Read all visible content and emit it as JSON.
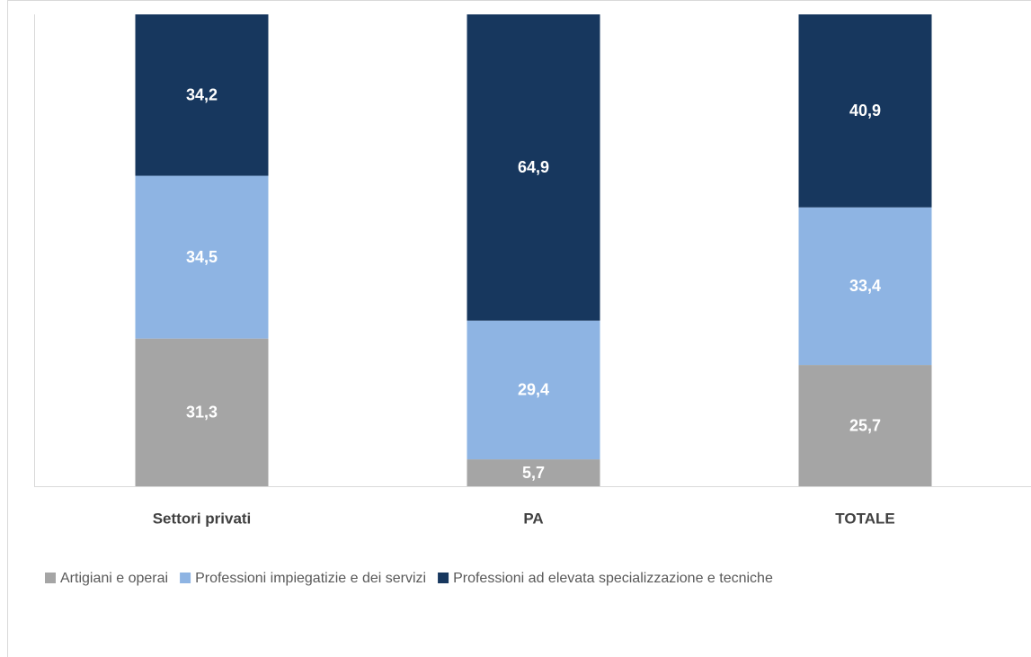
{
  "chart_data": {
    "type": "stacked-bar",
    "categories": [
      "Settori privati",
      "PA",
      "TOTALE"
    ],
    "series": [
      {
        "name": "Artigiani e operai",
        "color": "#a5a5a5",
        "values": [
          31.3,
          5.7,
          25.7
        ],
        "value_labels": [
          "31,3",
          "5,7",
          "25,7"
        ]
      },
      {
        "name": "Professioni impiegatizie e dei servizi",
        "color": "#8eb4e3",
        "values": [
          34.5,
          29.4,
          33.4
        ],
        "value_labels": [
          "34,5",
          "29,4",
          "33,4"
        ]
      },
      {
        "name": "Professioni ad elevata specializzazione e tecniche",
        "color": "#17375e",
        "values": [
          34.2,
          64.9,
          40.9
        ],
        "value_labels": [
          "34,2",
          "64,9",
          "40,9"
        ]
      }
    ],
    "ylim": [
      0,
      100
    ],
    "legend": "bottom"
  }
}
